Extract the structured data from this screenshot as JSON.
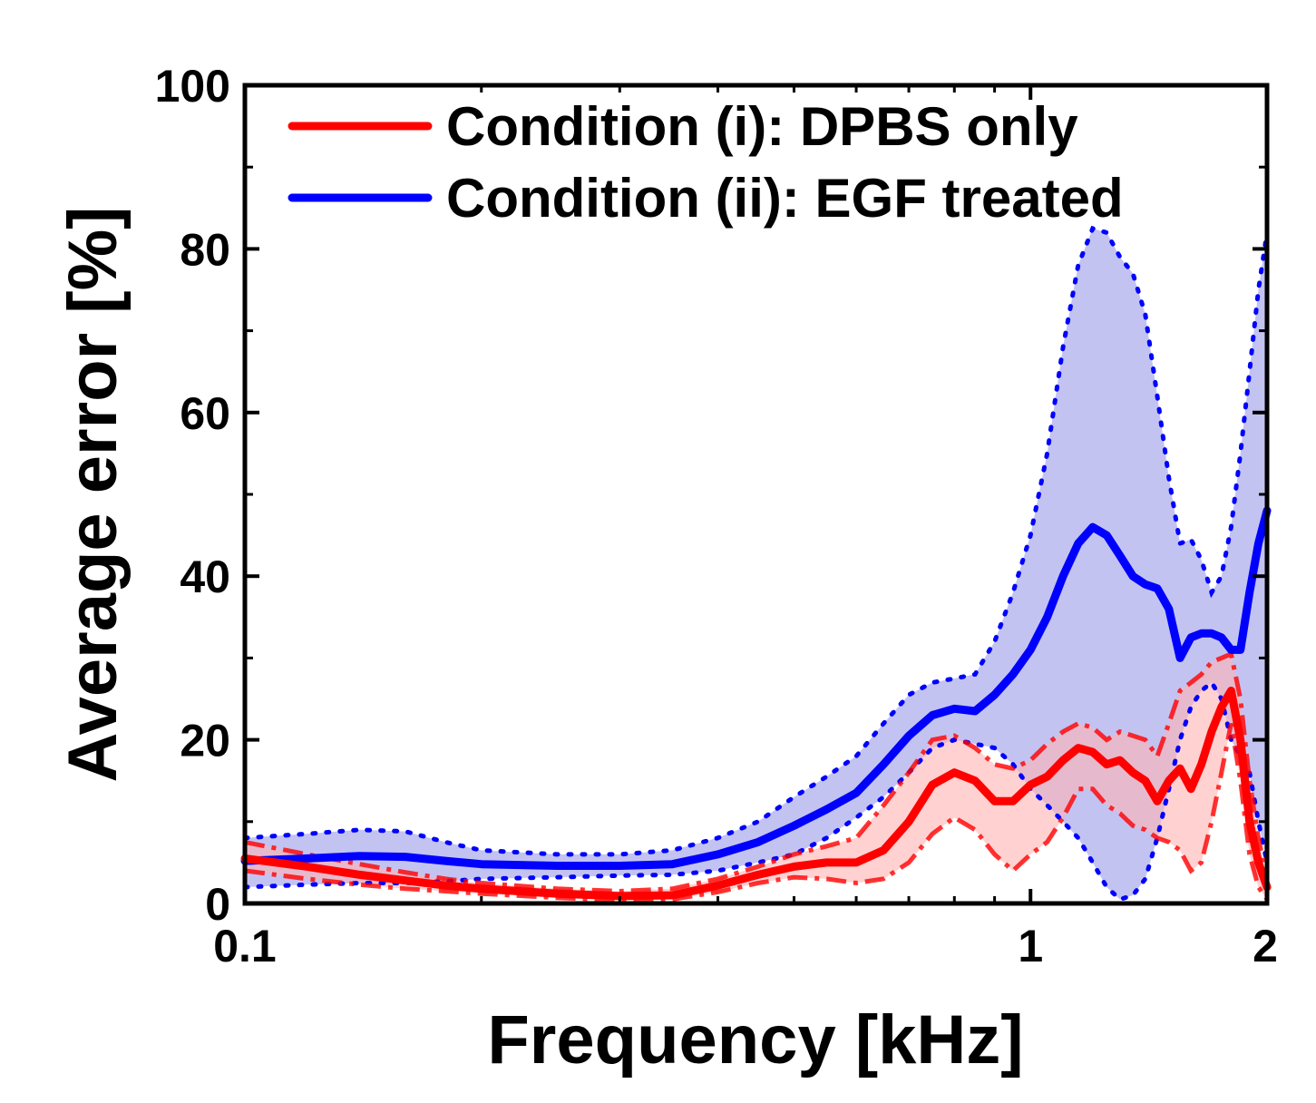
{
  "chart_data": {
    "type": "line",
    "title": "",
    "xlabel": "Frequency [kHz]",
    "ylabel": "Average error [%]",
    "xscale": "log",
    "xlim": [
      0.1,
      2
    ],
    "ylim": [
      0,
      100
    ],
    "x_ticks": [
      {
        "value": 0.1,
        "label": "0.1"
      },
      {
        "value": 1,
        "label": "1"
      },
      {
        "value": 2,
        "label": "2"
      }
    ],
    "y_ticks": [
      {
        "value": 0,
        "label": "0"
      },
      {
        "value": 20,
        "label": "20"
      },
      {
        "value": 40,
        "label": "40"
      },
      {
        "value": 60,
        "label": "60"
      },
      {
        "value": 80,
        "label": "80"
      },
      {
        "value": 100,
        "label": "100"
      }
    ],
    "legend_position": "top-left",
    "grid": false,
    "series": [
      {
        "name": "Condition (i): DPBS only",
        "color": "#ff0000",
        "band_color": "#ffb3b3",
        "x": [
          0.1,
          0.12,
          0.14,
          0.16,
          0.18,
          0.2,
          0.25,
          0.3,
          0.35,
          0.4,
          0.45,
          0.5,
          0.55,
          0.6,
          0.65,
          0.7,
          0.75,
          0.8,
          0.85,
          0.9,
          0.95,
          1.0,
          1.05,
          1.1,
          1.15,
          1.2,
          1.25,
          1.3,
          1.35,
          1.4,
          1.45,
          1.5,
          1.55,
          1.6,
          1.65,
          1.7,
          1.75,
          1.8,
          1.85,
          1.9,
          1.95,
          2.0
        ],
        "mean": [
          5.5,
          4.5,
          3.5,
          2.8,
          2.2,
          1.8,
          1.2,
          0.9,
          1.0,
          2.2,
          3.5,
          4.5,
          5.0,
          5.0,
          6.5,
          10.0,
          14.5,
          16.0,
          15.0,
          12.5,
          12.5,
          14.5,
          15.5,
          17.5,
          19.0,
          18.5,
          17.0,
          17.5,
          16.0,
          15.0,
          12.5,
          15.0,
          16.5,
          14.0,
          17.0,
          21.0,
          24.0,
          26.0,
          20.0,
          10.0,
          5.0,
          2.0
        ],
        "upper": [
          7.5,
          6.0,
          4.8,
          3.8,
          3.0,
          2.5,
          1.8,
          1.5,
          1.8,
          3.0,
          4.5,
          6.0,
          7.0,
          8.0,
          12.0,
          16.0,
          20.0,
          20.5,
          19.0,
          17.0,
          16.5,
          17.5,
          19.5,
          21.0,
          22.0,
          21.5,
          20.0,
          21.0,
          20.5,
          20.0,
          18.0,
          22.0,
          26.0,
          27.0,
          28.0,
          29.5,
          30.0,
          30.5,
          25.0,
          15.0,
          8.0,
          3.0
        ],
        "lower": [
          4.0,
          3.0,
          2.3,
          1.8,
          1.5,
          1.2,
          0.7,
          0.4,
          0.5,
          1.4,
          2.5,
          3.2,
          3.0,
          2.5,
          3.0,
          5.0,
          8.5,
          10.5,
          9.0,
          6.0,
          4.0,
          6.0,
          7.5,
          10.5,
          14.0,
          14.0,
          12.0,
          11.0,
          9.5,
          9.0,
          8.0,
          7.5,
          6.5,
          4.0,
          5.0,
          10.0,
          16.0,
          22.0,
          15.0,
          6.0,
          2.0,
          0.5
        ]
      },
      {
        "name": "Condition (ii): EGF treated",
        "color": "#0000ff",
        "band_color": "#b9b9f0",
        "x": [
          0.1,
          0.12,
          0.14,
          0.16,
          0.18,
          0.2,
          0.25,
          0.3,
          0.35,
          0.4,
          0.45,
          0.5,
          0.55,
          0.6,
          0.65,
          0.7,
          0.75,
          0.8,
          0.85,
          0.9,
          0.95,
          1.0,
          1.05,
          1.1,
          1.15,
          1.2,
          1.25,
          1.3,
          1.35,
          1.4,
          1.45,
          1.5,
          1.55,
          1.6,
          1.65,
          1.7,
          1.75,
          1.8,
          1.85,
          1.9,
          1.95,
          2.0
        ],
        "mean": [
          5.2,
          5.5,
          5.8,
          5.7,
          5.2,
          4.8,
          4.6,
          4.6,
          4.8,
          6.0,
          7.5,
          9.5,
          11.5,
          13.5,
          17.0,
          20.5,
          23.0,
          23.8,
          23.5,
          25.5,
          28.0,
          31.0,
          35.0,
          40.0,
          44.0,
          46.0,
          45.0,
          42.5,
          40.0,
          39.0,
          38.5,
          36.0,
          30.0,
          32.5,
          33.0,
          33.0,
          32.5,
          31.0,
          31.0,
          38.0,
          44.0,
          48.0
        ],
        "upper": [
          8.0,
          8.5,
          9.0,
          8.8,
          7.5,
          6.5,
          6.0,
          6.0,
          6.5,
          8.0,
          10.0,
          13.0,
          15.5,
          18.0,
          22.0,
          25.5,
          27.0,
          27.5,
          28.0,
          32.0,
          38.0,
          45.0,
          55.0,
          68.0,
          78.0,
          82.5,
          82.0,
          79.0,
          77.0,
          72.0,
          62.0,
          52.0,
          44.0,
          44.5,
          42.0,
          38.0,
          40.0,
          46.0,
          55.0,
          65.0,
          75.0,
          82.0
        ],
        "lower": [
          2.0,
          2.3,
          2.5,
          2.5,
          2.7,
          3.0,
          3.2,
          3.4,
          3.5,
          4.0,
          5.0,
          6.0,
          8.0,
          10.5,
          13.0,
          16.0,
          19.0,
          20.0,
          19.5,
          19.0,
          17.0,
          14.0,
          12.0,
          10.0,
          8.0,
          5.0,
          2.0,
          0.5,
          1.0,
          3.0,
          8.0,
          14.0,
          20.0,
          24.0,
          26.0,
          27.0,
          25.0,
          20.0,
          18.0,
          16.0,
          10.0,
          5.0
        ]
      }
    ]
  }
}
